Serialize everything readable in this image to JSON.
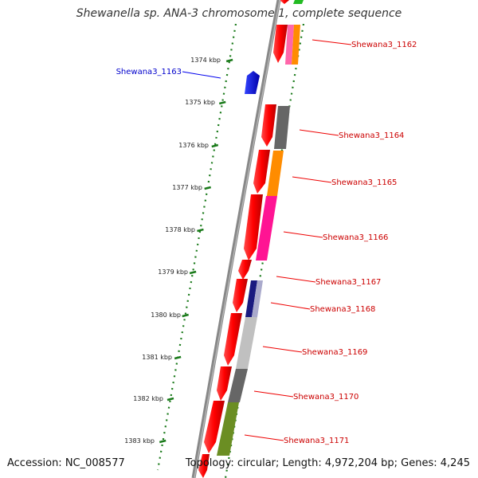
{
  "title": "Shewanella sp. ANA-3 chromosome 1, complete sequence",
  "accession": "Accession: NC_008577",
  "topology": "Topology: circular; Length: 4,972,204 bp; Genes: 4,245",
  "kbp_ticks": [
    "1374 kbp",
    "1375 kbp",
    "1376 kbp",
    "1377 kbp",
    "1378 kbp",
    "1379 kbp",
    "1380 kbp",
    "1381 kbp",
    "1382 kbp",
    "1383 kbp"
  ],
  "genes": [
    {
      "name": "Shewana3_1162",
      "color": "#cc0000"
    },
    {
      "name": "Shewana3_1163",
      "color": "#0000cc"
    },
    {
      "name": "Shewana3_1164",
      "color": "#cc0000"
    },
    {
      "name": "Shewana3_1165",
      "color": "#cc0000"
    },
    {
      "name": "Shewana3_1166",
      "color": "#cc0000"
    },
    {
      "name": "Shewana3_1167",
      "color": "#cc0000"
    },
    {
      "name": "Shewana3_1168",
      "color": "#cc0000"
    },
    {
      "name": "Shewana3_1169",
      "color": "#cc0000"
    },
    {
      "name": "Shewana3_1170",
      "color": "#cc0000"
    },
    {
      "name": "Shewana3_1171",
      "color": "#cc0000"
    }
  ],
  "colors": {
    "cds": "#ff0000",
    "forward_cds": "#0000ee",
    "backbone": "#777777",
    "tick": "#1a7a1a",
    "cog_orange": "#ff8c00",
    "cog_pink": "#ff1493",
    "cog_gray_dark": "#666666",
    "cog_gray_light": "#c0c0c0",
    "cog_navy": "#1a1a80",
    "cog_olive": "#6b8e23",
    "cog_green": "#22bb22"
  }
}
